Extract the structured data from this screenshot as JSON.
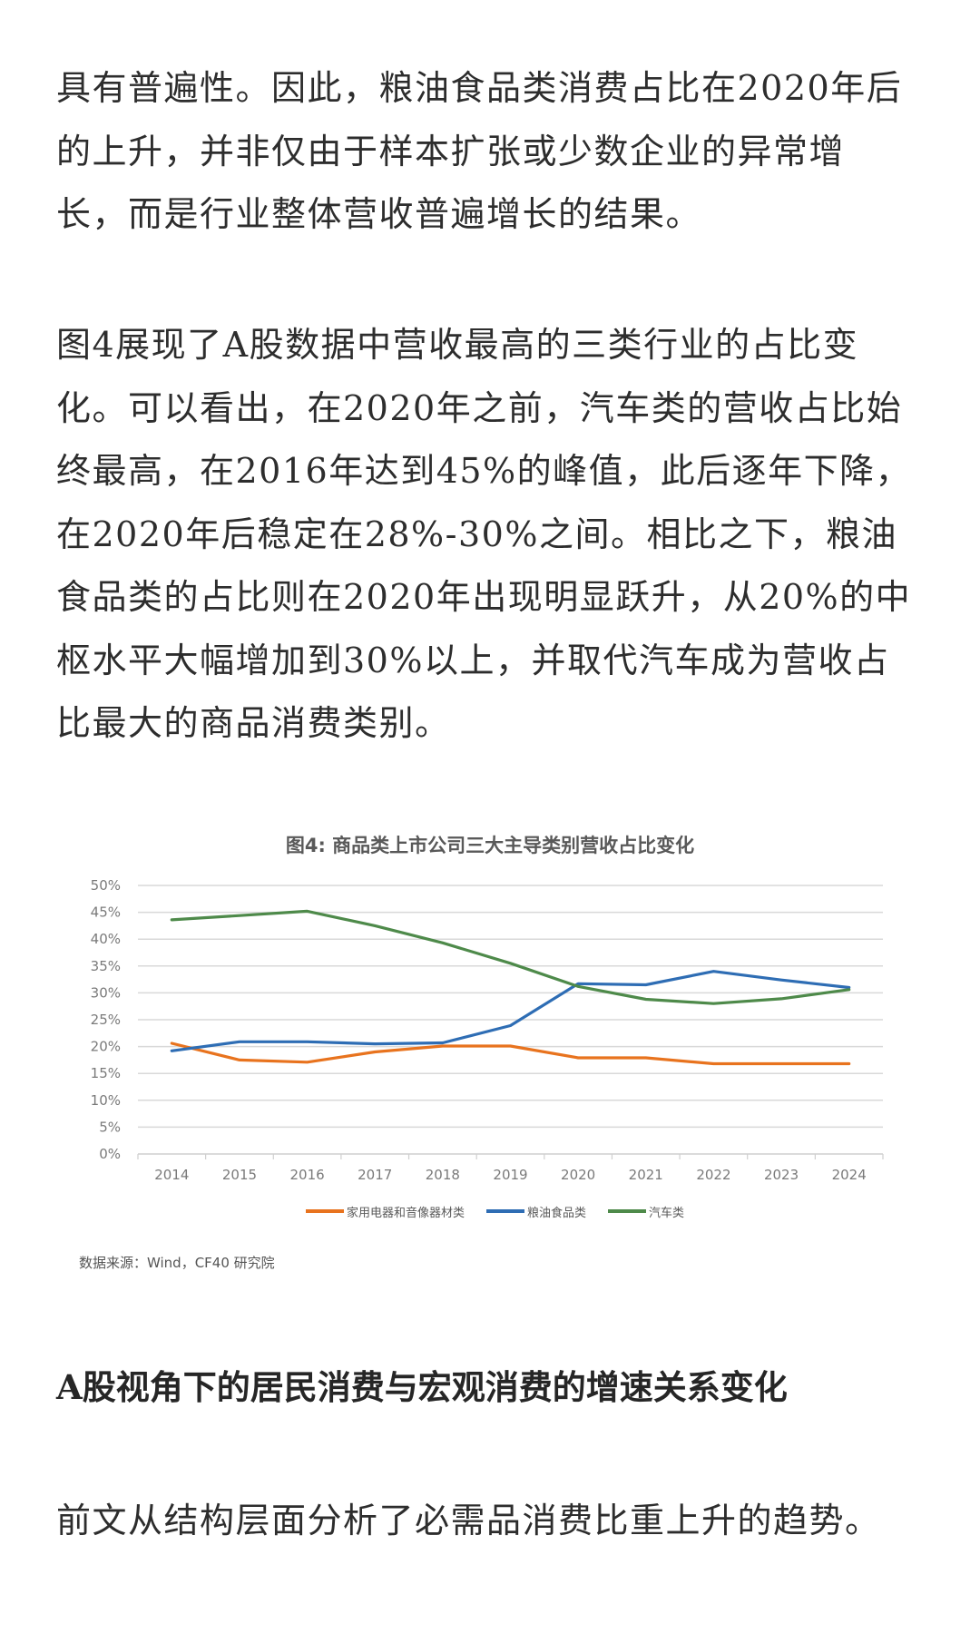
{
  "article": {
    "para1": {
      "lines": [
        "具有普遍性。因此，粮油食品类消费占比在2020年后",
        "的上升，并非仅由于样本扩张或少数企业的异常增",
        "长，而是行业整体营收普遍增长的结果。"
      ]
    },
    "para2": {
      "lines": [
        "图4展现了A股数据中营收最高的三类行业的占比变",
        "化。可以看出，在2020年之前，汽车类的营收占比始",
        "终最高，在2016年达到45%的峰值，此后逐年下降，",
        "在2020年后稳定在28%-30%之间。相比之下，粮油",
        "食品类的占比则在2020年出现明显跃升，从20%的中",
        "枢水平大幅增加到30%以上，并取代汽车成为营收占",
        "比最大的商品消费类别。"
      ]
    },
    "section_heading": "A股视角下的居民消费与宏观消费的增速关系变化",
    "para3": {
      "lines": [
        "前文从结构层面分析了必需品消费比重上升的趋势。"
      ]
    }
  },
  "figure": {
    "source": "数据来源：Wind，CF40 研究院"
  },
  "chart_data": {
    "type": "line",
    "title": "图4: 商品类上市公司三大主导类别营收占比变化",
    "xlabel": "",
    "ylabel": "",
    "categories": [
      "2014",
      "2015",
      "2016",
      "2017",
      "2018",
      "2019",
      "2020",
      "2021",
      "2022",
      "2023",
      "2024"
    ],
    "ylim": [
      0,
      50
    ],
    "yticks": [
      "0%",
      "5%",
      "10%",
      "15%",
      "20%",
      "25%",
      "30%",
      "35%",
      "40%",
      "45%",
      "50%"
    ],
    "grid": true,
    "legend_position": "bottom",
    "series": [
      {
        "name": "家用电器和音像器材类",
        "color": "#E8731E",
        "values": [
          20.6,
          17.5,
          17.1,
          19.0,
          20.1,
          20.1,
          17.9,
          17.9,
          16.8,
          16.8,
          16.8
        ]
      },
      {
        "name": "粮油食品类",
        "color": "#2E6DB4",
        "values": [
          19.2,
          20.9,
          20.9,
          20.5,
          20.7,
          23.9,
          31.7,
          31.5,
          34.0,
          32.4,
          31.0
        ]
      },
      {
        "name": "汽车类",
        "color": "#4E8A4A",
        "values": [
          43.6,
          44.4,
          45.2,
          42.5,
          39.3,
          35.5,
          31.2,
          28.8,
          28.0,
          28.9,
          30.6
        ]
      }
    ]
  }
}
